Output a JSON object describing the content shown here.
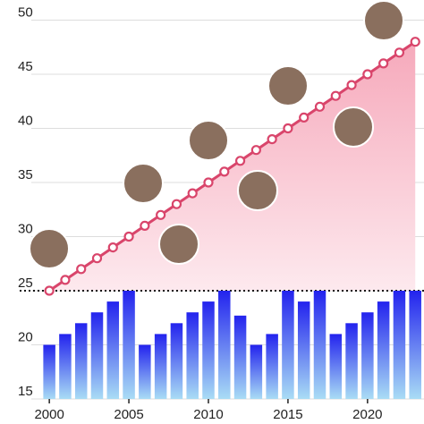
{
  "chart_data": {
    "type": "bar_line",
    "x": [
      2000,
      2001,
      2002,
      2003,
      2004,
      2005,
      2006,
      2007,
      2008,
      2009,
      2010,
      2011,
      2012,
      2013,
      2014,
      2015,
      2016,
      2017,
      2018,
      2019,
      2020,
      2021,
      2022,
      2023
    ],
    "series": [
      {
        "type": "bar",
        "color": "#2b2bf0",
        "values": [
          20,
          21,
          22,
          23,
          24,
          25,
          20,
          21,
          22,
          23,
          24,
          25,
          22.7,
          20,
          21,
          25,
          24,
          25,
          21,
          22,
          23,
          24,
          25,
          25
        ]
      },
      {
        "type": "line",
        "color": "#d9456b",
        "values": [
          25,
          26,
          27,
          28,
          29,
          30,
          31,
          32,
          33,
          34,
          35,
          36,
          37,
          38,
          39,
          40,
          41,
          42,
          43,
          44,
          45,
          46,
          47,
          48
        ]
      }
    ],
    "xlim": [
      1996.9,
      2023.55
    ],
    "xticks": [
      2000,
      2005,
      2010,
      2015,
      2020
    ],
    "ylim": [
      15,
      50
    ],
    "yticks": [
      15,
      20,
      25,
      30,
      35,
      40,
      45,
      50
    ],
    "reference_line": 25,
    "grid": true
  }
}
